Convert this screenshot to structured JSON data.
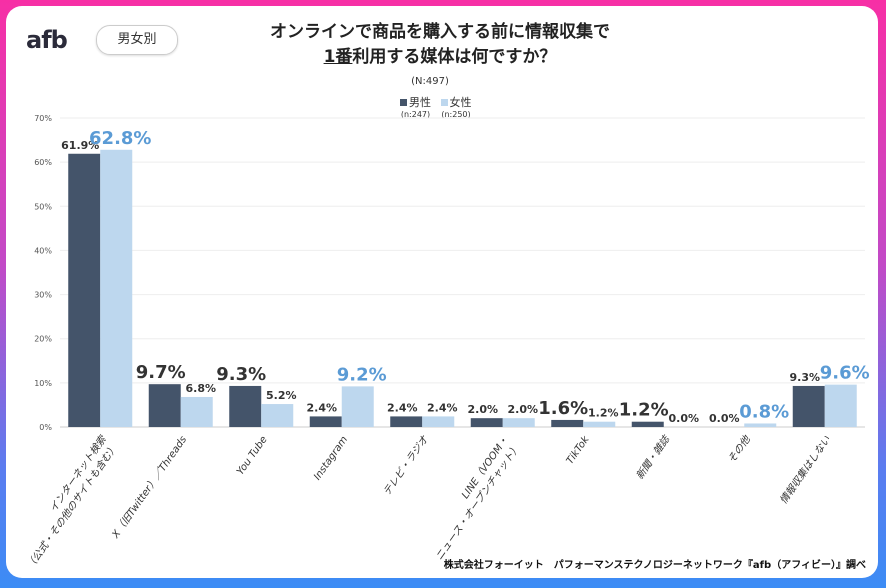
{
  "header": {
    "logo": "afb",
    "filter_pill": "男女別",
    "title_line1": "オンラインで商品を購入する前に情報収集で",
    "title_line2_underlined": "1番",
    "title_line2_rest": "利用する媒体は何ですか？",
    "n_total": "(N:497)"
  },
  "legend": [
    {
      "label": "男性",
      "n": "(n:247)",
      "color": "#44546a"
    },
    {
      "label": "女性",
      "n": "(n:250)",
      "color": "#bdd7ee"
    }
  ],
  "credit": "株式会社フォーイット　パフォーマンステクノロジーネットワーク『afb（アフィビー）』調べ",
  "chart_data": {
    "type": "bar",
    "title": "オンラインで商品を購入する前に情報収集で1番利用する媒体は何ですか？",
    "categories": [
      "インターネット検索\n（公式・その他のサイトも含む）",
      "X（旧Twitter）／Threads",
      "You Tube",
      "Instagram",
      "テレビ・ラジオ",
      "LINE（VOOM・\nニュース・オープンチャット）",
      "TikTok",
      "新聞・雑誌",
      "その他",
      "情報収集はしない"
    ],
    "series": [
      {
        "name": "男性",
        "color": "#44546a",
        "values": [
          61.9,
          9.7,
          9.3,
          2.4,
          2.4,
          2.0,
          1.6,
          1.2,
          0.0,
          9.3
        ],
        "highlight": [
          false,
          true,
          true,
          false,
          false,
          false,
          true,
          true,
          false,
          false
        ]
      },
      {
        "name": "女性",
        "color": "#bdd7ee",
        "values": [
          62.8,
          6.8,
          5.2,
          9.2,
          2.4,
          2.0,
          1.2,
          0.0,
          0.8,
          9.6
        ],
        "highlight": [
          true,
          false,
          false,
          true,
          false,
          false,
          false,
          false,
          true,
          true
        ]
      }
    ],
    "ylim": [
      0,
      70
    ],
    "yticks": [
      "0%",
      "10%",
      "20%",
      "30%",
      "40%",
      "50%",
      "60%",
      "70%"
    ],
    "grid": true,
    "legend_position": "top"
  }
}
